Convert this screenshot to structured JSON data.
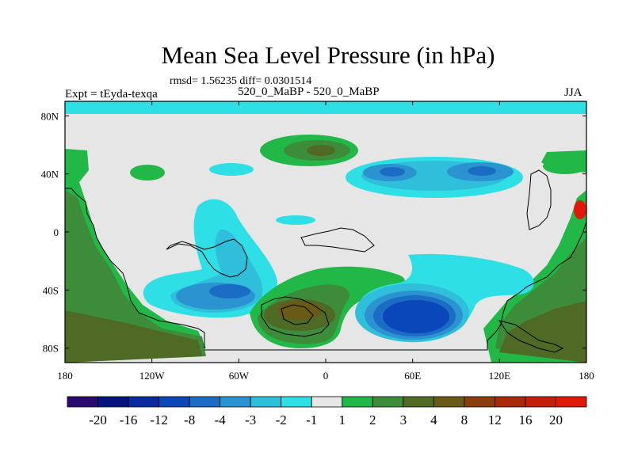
{
  "chart_data": {
    "type": "contour-map",
    "title": "Mean Sea Level Pressure (in hPa)",
    "stats": "rmsd= 1.56235 diff= 0.0301514",
    "left_label": "Expt = tEyda-texqa",
    "center_label": "520_0_MaBP - 520_0_MaBP",
    "right_label": "JJA",
    "xlim": [
      -180,
      180
    ],
    "ylim": [
      -90,
      90
    ],
    "x_ticks": [
      {
        "lon": -180,
        "label": "180"
      },
      {
        "lon": -120,
        "label": "120W"
      },
      {
        "lon": -60,
        "label": "60W"
      },
      {
        "lon": 0,
        "label": "0"
      },
      {
        "lon": 60,
        "label": "60E"
      },
      {
        "lon": 120,
        "label": "120E"
      },
      {
        "lon": 180,
        "label": "180"
      }
    ],
    "y_ticks": [
      {
        "lat": 80,
        "label": "80N"
      },
      {
        "lat": 40,
        "label": "40N"
      },
      {
        "lat": 0,
        "label": "0"
      },
      {
        "lat": -40,
        "label": "40S"
      },
      {
        "lat": -80,
        "label": "80S"
      }
    ],
    "colorbar": {
      "levels": [
        "-20",
        "-16",
        "-12",
        "-8",
        "-4",
        "-3",
        "-2",
        "-1",
        "1",
        "2",
        "3",
        "4",
        "8",
        "12",
        "16",
        "20"
      ],
      "colors": [
        "#2a0a6e",
        "#06137f",
        "#0a2aa0",
        "#0a47b8",
        "#1b6cc4",
        "#2b93cf",
        "#30bfdb",
        "#2fdfe6",
        "#e6e6e6",
        "#22b848",
        "#3c8c3a",
        "#4f6a24",
        "#6a5a18",
        "#8a3e0e",
        "#a82a08",
        "#c51f0a",
        "#e01a0a"
      ]
    },
    "features": [
      {
        "kind": "high",
        "lon": -30,
        "lat": 55,
        "max": 4
      },
      {
        "kind": "low",
        "lon": 60,
        "lat": 40,
        "min": -4
      },
      {
        "kind": "low",
        "lon": -80,
        "lat": -35,
        "min": -4
      },
      {
        "kind": "low",
        "lon": 60,
        "lat": -60,
        "min": -12
      },
      {
        "kind": "high",
        "lon": -20,
        "lat": -55,
        "max": 8
      }
    ]
  }
}
